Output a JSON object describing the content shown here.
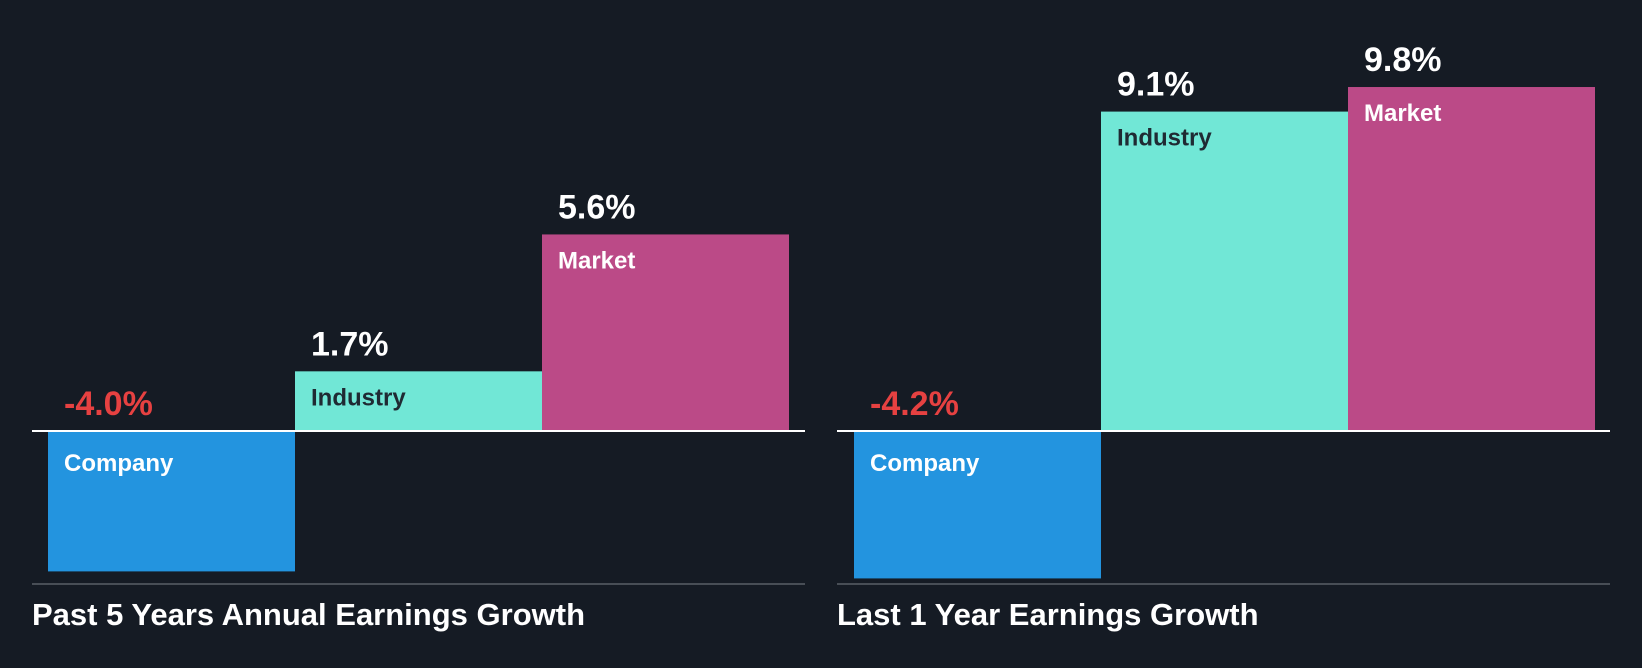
{
  "theme": {
    "background": "#151b24",
    "company_color": "#2394df",
    "industry_color": "#71e7d6",
    "market_color": "#bb4a87",
    "negative_value_color": "#e64141",
    "positive_value_color": "#ffffff",
    "baseline_color": "#ffffff",
    "bottom_rule_color": "#5a5f66",
    "industry_label_color": "#1f2a33",
    "default_label_color": "#ffffff"
  },
  "chart_data": [
    {
      "type": "bar",
      "title": "Past 5 Years Annual Earnings Growth",
      "categories": [
        "Company",
        "Industry",
        "Market"
      ],
      "values": [
        -4.0,
        1.7,
        5.6
      ],
      "value_labels": [
        "-4.0%",
        "1.7%",
        "5.6%"
      ],
      "unit": "%"
    },
    {
      "type": "bar",
      "title": "Last 1 Year Earnings Growth",
      "categories": [
        "Company",
        "Industry",
        "Market"
      ],
      "values": [
        -4.2,
        9.1,
        9.8
      ],
      "value_labels": [
        "-4.2%",
        "9.1%",
        "9.8%"
      ],
      "unit": "%"
    }
  ]
}
